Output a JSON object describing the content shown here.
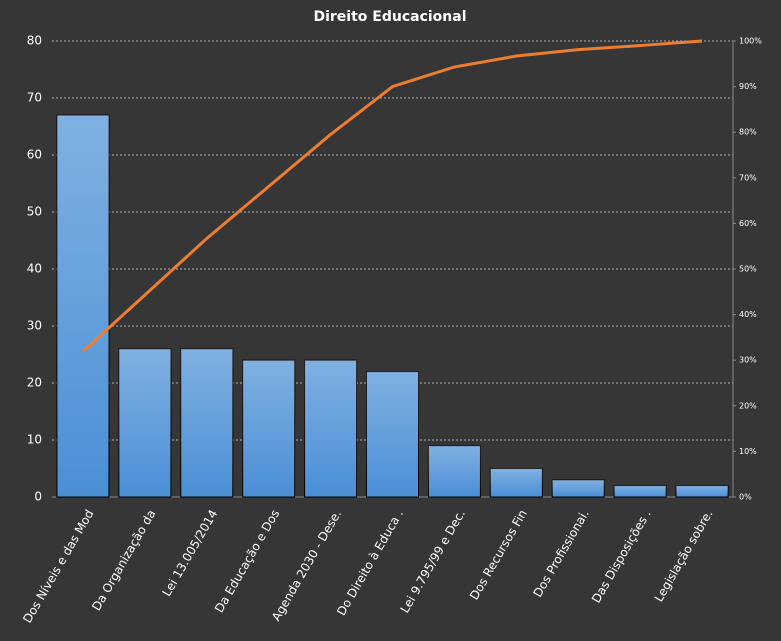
{
  "chart_data": {
    "type": "pareto",
    "title": "Direito  Educacional",
    "categories": [
      "Dos Níveis e das Mod",
      "Da Organização da",
      "Lei 13.005/2014",
      "Da Educação e Dos",
      "Agenda 2030 - Dese.",
      "Do Direito à Educa .",
      "Lei 9.795/99 e Dec.",
      "Dos Recursos Fin",
      "Dos Profissionai.",
      "Das Disposições .",
      "Legislação sobre."
    ],
    "series": [
      {
        "type": "bar",
        "color": "#4a8fd6",
        "values": [
          67,
          26,
          26,
          24,
          24,
          22,
          9,
          5,
          3,
          2,
          2
        ]
      },
      {
        "type": "line",
        "axis": "y2",
        "color": "#ed7d31",
        "values": [
          31.9,
          44.3,
          56.7,
          68.1,
          79.5,
          90.0,
          94.3,
          96.7,
          98.1,
          99.0,
          100
        ]
      }
    ],
    "ylim": [
      0,
      80
    ],
    "yticks": [
      0,
      10,
      20,
      30,
      40,
      50,
      60,
      70,
      80
    ],
    "y2lim": [
      0,
      100
    ],
    "y2ticks": [
      {
        "value": 0,
        "label": "0%"
      },
      {
        "value": 10,
        "label": "10%"
      },
      {
        "value": 20,
        "label": "20%"
      },
      {
        "value": 30,
        "label": "30%"
      },
      {
        "value": 40,
        "label": "40%"
      },
      {
        "value": 50,
        "label": "50%"
      },
      {
        "value": 60,
        "label": "60%"
      },
      {
        "value": 70,
        "label": "70%"
      },
      {
        "value": 80,
        "label": "80%"
      },
      {
        "value": 90,
        "label": "90%"
      },
      {
        "value": 100,
        "label": "100%"
      }
    ],
    "grid": true
  }
}
